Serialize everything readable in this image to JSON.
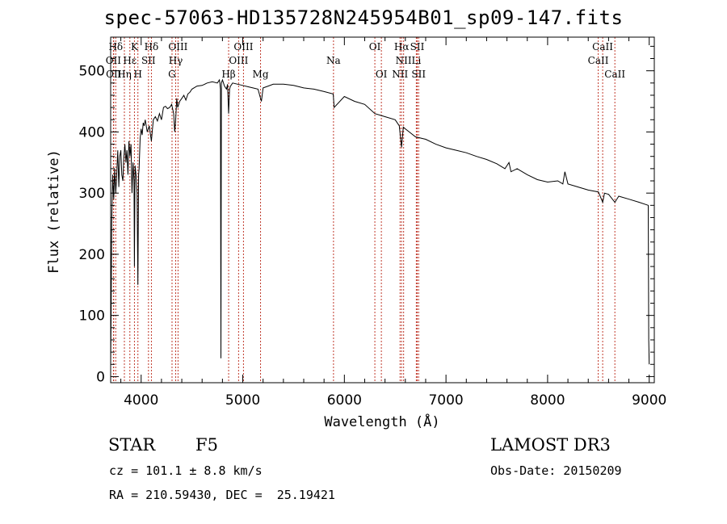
{
  "title": "spec-57063-HD135728N245954B01_sp09-147.fits",
  "info": {
    "object_class": "STAR",
    "subclass": "F5",
    "survey": "LAMOST DR3",
    "cz": "cz = 101.1 ± 8.8 km/s",
    "obs_date": "Obs-Date: 20150209",
    "coords": "RA = 210.59430, DEC =  25.19421"
  },
  "colors": {
    "line_marker": "#c0392b",
    "spectrum": "#000000",
    "axis": "#000000"
  },
  "chart_data": {
    "type": "line",
    "title": "spec-57063-HD135728N245954B01_sp09-147.fits",
    "xlabel": "Wavelength (Å)",
    "ylabel": "Flux (relative)",
    "xlim": [
      3700,
      9050
    ],
    "ylim": [
      -10,
      555
    ],
    "xticks": [
      4000,
      5000,
      6000,
      7000,
      8000,
      9000
    ],
    "yticks": [
      0,
      100,
      200,
      300,
      400,
      500
    ],
    "series": [
      {
        "name": "flux",
        "x": [
          3700,
          3705,
          3710,
          3720,
          3730,
          3740,
          3750,
          3760,
          3770,
          3780,
          3790,
          3800,
          3810,
          3820,
          3830,
          3840,
          3850,
          3860,
          3870,
          3880,
          3890,
          3900,
          3910,
          3920,
          3930,
          3934,
          3940,
          3950,
          3960,
          3968,
          3975,
          3980,
          3990,
          4000,
          4010,
          4020,
          4030,
          4040,
          4060,
          4080,
          4101,
          4120,
          4140,
          4160,
          4180,
          4200,
          4220,
          4240,
          4260,
          4280,
          4300,
          4320,
          4330,
          4340,
          4350,
          4360,
          4380,
          4400,
          4420,
          4440,
          4460,
          4480,
          4500,
          4550,
          4600,
          4650,
          4700,
          4750,
          4770,
          4775,
          4780,
          4785,
          4790,
          4800,
          4820,
          4840,
          4850,
          4861,
          4870,
          4880,
          4900,
          4950,
          5000,
          5050,
          5100,
          5150,
          5175,
          5183,
          5200,
          5250,
          5300,
          5400,
          5500,
          5600,
          5700,
          5800,
          5890,
          5900,
          6000,
          6100,
          6200,
          6300,
          6400,
          6500,
          6540,
          6563,
          6580,
          6600,
          6700,
          6800,
          6900,
          7000,
          7100,
          7200,
          7300,
          7400,
          7500,
          7580,
          7600,
          7620,
          7640,
          7700,
          7800,
          7900,
          8000,
          8100,
          8150,
          8170,
          8200,
          8300,
          8400,
          8500,
          8542,
          8560,
          8600,
          8662,
          8700,
          8800,
          8900,
          8990,
          8995,
          9000
        ],
        "values": [
          20,
          110,
          250,
          330,
          290,
          340,
          300,
          330,
          370,
          310,
          360,
          370,
          330,
          320,
          360,
          380,
          350,
          370,
          330,
          385,
          360,
          380,
          300,
          350,
          320,
          180,
          345,
          330,
          300,
          150,
          330,
          340,
          390,
          405,
          395,
          415,
          410,
          420,
          400,
          410,
          385,
          420,
          425,
          418,
          430,
          420,
          440,
          442,
          438,
          440,
          445,
          430,
          400,
          420,
          455,
          440,
          450,
          455,
          460,
          452,
          462,
          465,
          470,
          475,
          476,
          480,
          482,
          480,
          485,
          480,
          470,
          30,
          480,
          485,
          475,
          470,
          478,
          430,
          470,
          475,
          480,
          478,
          476,
          474,
          472,
          470,
          455,
          450,
          472,
          475,
          478,
          478,
          476,
          472,
          470,
          466,
          462,
          440,
          458,
          450,
          445,
          430,
          425,
          420,
          410,
          375,
          408,
          405,
          392,
          388,
          380,
          374,
          370,
          366,
          360,
          355,
          348,
          340,
          345,
          350,
          335,
          340,
          330,
          322,
          318,
          320,
          315,
          335,
          315,
          310,
          305,
          302,
          285,
          300,
          298,
          285,
          295,
          290,
          285,
          280,
          60,
          20
        ]
      }
    ],
    "emission_lines": [
      {
        "name": "OII",
        "x": 3727,
        "row": 2
      },
      {
        "name": "OII",
        "x": 3730,
        "row": 3
      },
      {
        "name": "Hη",
        "x": 3835,
        "row": 3
      },
      {
        "name": "Hε",
        "x": 3889,
        "row": 2
      },
      {
        "name": "Hδ",
        "x": 3750,
        "row": 1
      },
      {
        "name": "K",
        "x": 3934,
        "row": 1
      },
      {
        "name": "H",
        "x": 3968,
        "row": 3
      },
      {
        "name": "SII",
        "x": 4072,
        "row": 2
      },
      {
        "name": "Hδ",
        "x": 4101,
        "row": 1
      },
      {
        "name": "OIII",
        "x": 4363,
        "row": 1
      },
      {
        "name": "Hγ",
        "x": 4340,
        "row": 2
      },
      {
        "name": "G",
        "x": 4304,
        "row": 3
      },
      {
        "name": "Hβ",
        "x": 4861,
        "row": 3
      },
      {
        "name": "OIII",
        "x": 4959,
        "row": 2
      },
      {
        "name": "OIII",
        "x": 5007,
        "row": 1
      },
      {
        "name": "Mg",
        "x": 5175,
        "row": 3
      },
      {
        "name": "Na",
        "x": 5893,
        "row": 2
      },
      {
        "name": "OI",
        "x": 6300,
        "row": 1
      },
      {
        "name": "OI",
        "x": 6364,
        "row": 3
      },
      {
        "name": "NII",
        "x": 6548,
        "row": 3
      },
      {
        "name": "Hα",
        "x": 6563,
        "row": 1
      },
      {
        "name": "NII",
        "x": 6583,
        "row": 2
      },
      {
        "name": "SII",
        "x": 6717,
        "row": 1
      },
      {
        "name": "Li",
        "x": 6708,
        "row": 2
      },
      {
        "name": "SII",
        "x": 6731,
        "row": 3
      },
      {
        "name": "CaII",
        "x": 8498,
        "row": 2
      },
      {
        "name": "CaII",
        "x": 8542,
        "row": 1
      },
      {
        "name": "CaII",
        "x": 8662,
        "row": 3
      }
    ]
  }
}
